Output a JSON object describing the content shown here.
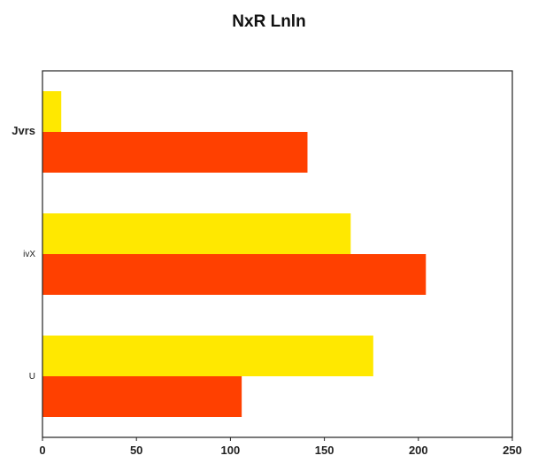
{
  "chart_data": {
    "type": "bar",
    "orientation": "horizontal",
    "title": "NxR Lnln",
    "xlabel": "",
    "ylabel": "",
    "categories": [
      "Jvrs",
      "ivX",
      "U"
    ],
    "series": [
      {
        "color": "#ffe800",
        "values": [
          10,
          164,
          176
        ]
      },
      {
        "color": "#ff4000",
        "values": [
          141,
          204,
          106
        ]
      }
    ],
    "xlim": [
      0,
      250
    ],
    "xticks": [
      0,
      50,
      100,
      150,
      200,
      250
    ],
    "grid": false,
    "legend": "none"
  }
}
